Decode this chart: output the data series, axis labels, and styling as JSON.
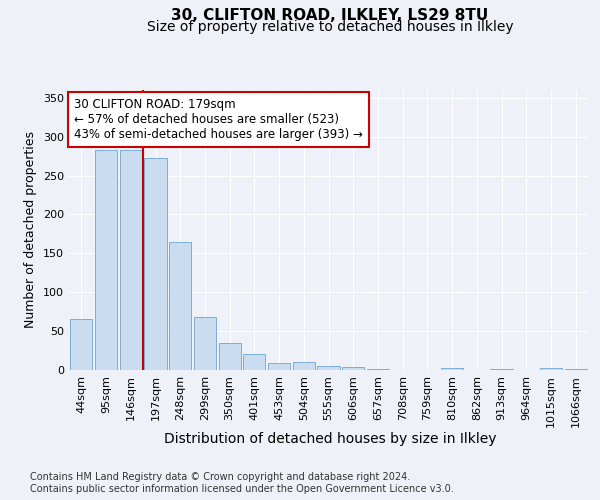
{
  "title1": "30, CLIFTON ROAD, ILKLEY, LS29 8TU",
  "title2": "Size of property relative to detached houses in Ilkley",
  "xlabel": "Distribution of detached houses by size in Ilkley",
  "ylabel": "Number of detached properties",
  "categories": [
    "44sqm",
    "95sqm",
    "146sqm",
    "197sqm",
    "248sqm",
    "299sqm",
    "350sqm",
    "401sqm",
    "453sqm",
    "504sqm",
    "555sqm",
    "606sqm",
    "657sqm",
    "708sqm",
    "759sqm",
    "810sqm",
    "862sqm",
    "913sqm",
    "964sqm",
    "1015sqm",
    "1066sqm"
  ],
  "values": [
    65,
    283,
    283,
    272,
    164,
    68,
    35,
    20,
    9,
    10,
    5,
    4,
    1,
    0,
    0,
    3,
    0,
    1,
    0,
    2,
    1
  ],
  "bar_color": "#c9dcf0",
  "bar_edge_color": "#7bafd4",
  "vline_x": 2.5,
  "vline_color": "#cc0000",
  "annotation_text": "30 CLIFTON ROAD: 179sqm\n← 57% of detached houses are smaller (523)\n43% of semi-detached houses are larger (393) →",
  "annotation_box_facecolor": "white",
  "annotation_box_edgecolor": "#cc0000",
  "ylim": [
    0,
    360
  ],
  "yticks": [
    0,
    50,
    100,
    150,
    200,
    250,
    300,
    350
  ],
  "footnote": "Contains HM Land Registry data © Crown copyright and database right 2024.\nContains public sector information licensed under the Open Government Licence v3.0.",
  "title1_fontsize": 11,
  "title2_fontsize": 10,
  "xlabel_fontsize": 10,
  "ylabel_fontsize": 9,
  "annotation_fontsize": 8.5,
  "tick_fontsize": 8,
  "footnote_fontsize": 7,
  "background_color": "#eef2f8",
  "grid_color": "#ffffff"
}
